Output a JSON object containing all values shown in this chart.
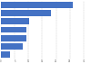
{
  "values": [
    26.09,
    18.18,
    10.34,
    9.38,
    9.09,
    8.0,
    3.23
  ],
  "bar_color": "#4472c4",
  "background_color": "#ffffff",
  "xlim": [
    0,
    32
  ],
  "grid_color": "#c0c0c0",
  "bar_height": 0.72
}
